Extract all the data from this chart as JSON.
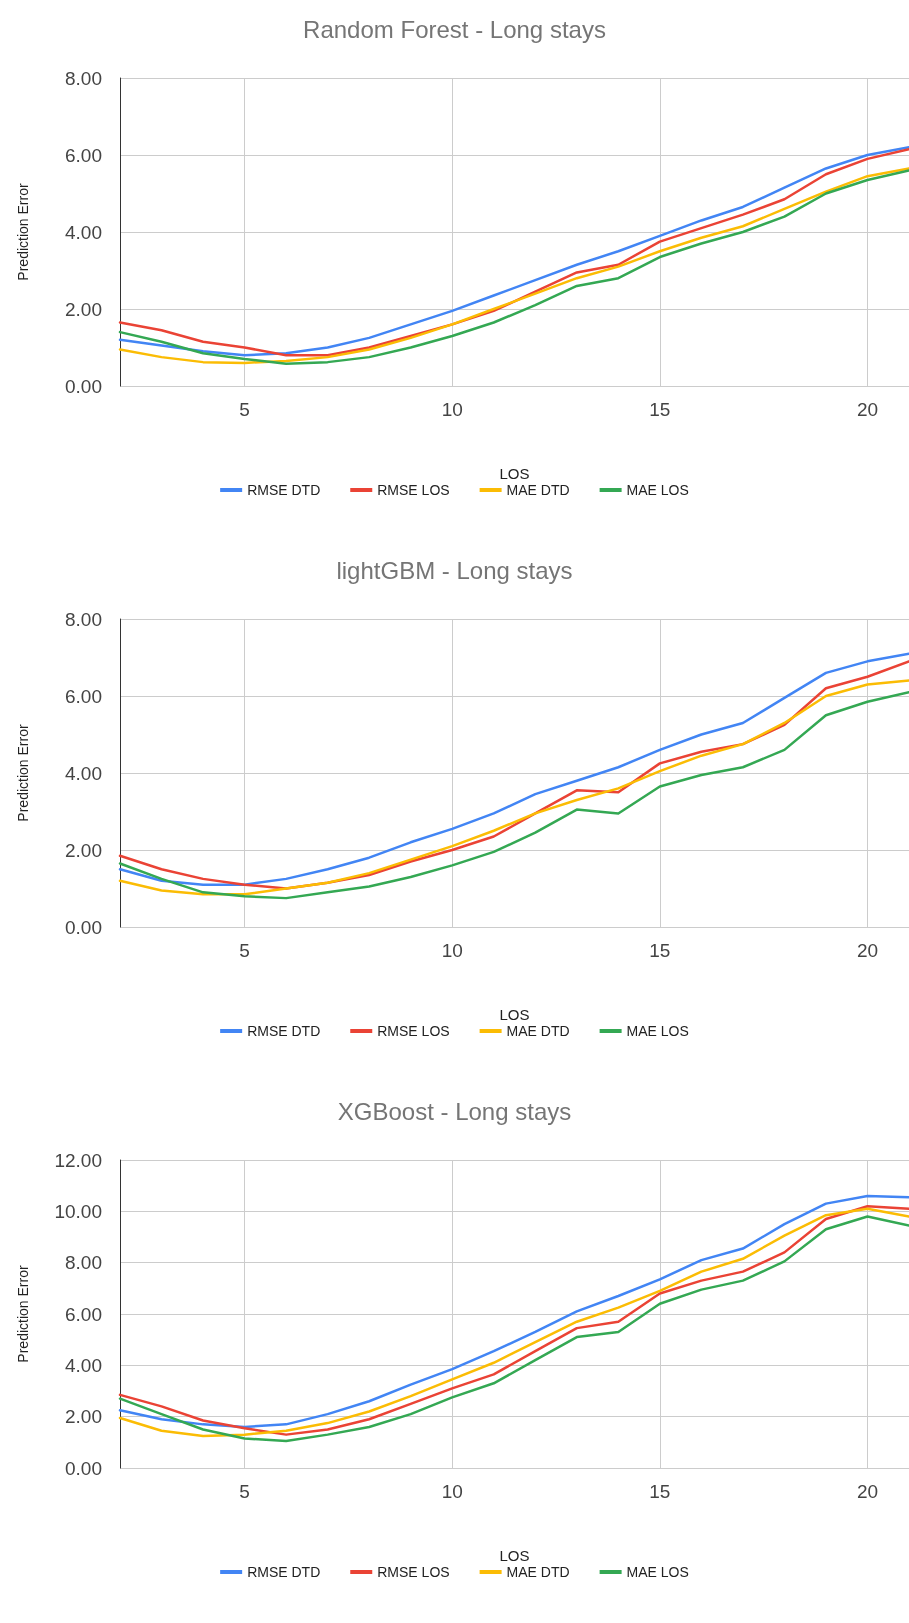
{
  "chart_data": [
    {
      "type": "line",
      "title": "Random Forest - Long stays",
      "xlabel": "LOS",
      "ylabel": "Prediction Error",
      "x": [
        2,
        3,
        4,
        5,
        6,
        7,
        8,
        9,
        10,
        11,
        12,
        13,
        14,
        15,
        16,
        17,
        18,
        19,
        20,
        21
      ],
      "xlim": [
        2,
        21
      ],
      "xticks": [
        5,
        10,
        15,
        20
      ],
      "ylim": [
        0,
        8
      ],
      "yticks": [
        {
          "value": 0,
          "label": "0.00"
        },
        {
          "value": 2,
          "label": "2.00"
        },
        {
          "value": 4,
          "label": "4.00"
        },
        {
          "value": 6,
          "label": "6.00"
        },
        {
          "value": 8,
          "label": "8.00"
        }
      ],
      "grid": true,
      "legend": "bottom",
      "marker": "none",
      "line_style": "solid",
      "series": [
        {
          "name": "RMSE DTD",
          "color": "#4285f4",
          "values": [
            1.2,
            1.05,
            0.9,
            0.8,
            0.85,
            1.0,
            1.25,
            1.6,
            1.95,
            2.35,
            2.75,
            3.15,
            3.5,
            3.9,
            4.3,
            4.65,
            5.15,
            5.65,
            6.0,
            6.2
          ]
        },
        {
          "name": "RMSE LOS",
          "color": "#ea4335",
          "values": [
            1.65,
            1.45,
            1.15,
            1.0,
            0.8,
            0.8,
            1.0,
            1.3,
            1.6,
            1.95,
            2.45,
            2.95,
            3.15,
            3.75,
            4.1,
            4.45,
            4.85,
            5.5,
            5.9,
            6.15
          ]
        },
        {
          "name": "MAE DTD",
          "color": "#fbbc04",
          "values": [
            0.95,
            0.75,
            0.62,
            0.6,
            0.65,
            0.75,
            0.95,
            1.25,
            1.6,
            2.0,
            2.4,
            2.8,
            3.1,
            3.5,
            3.85,
            4.15,
            4.6,
            5.05,
            5.45,
            5.65
          ]
        },
        {
          "name": "MAE LOS",
          "color": "#34a853",
          "values": [
            1.4,
            1.15,
            0.85,
            0.7,
            0.58,
            0.62,
            0.75,
            1.0,
            1.3,
            1.65,
            2.1,
            2.6,
            2.8,
            3.35,
            3.7,
            4.0,
            4.4,
            5.0,
            5.35,
            5.6
          ]
        }
      ]
    },
    {
      "type": "line",
      "title": "lightGBM - Long stays",
      "xlabel": "LOS",
      "ylabel": "Prediction Error",
      "x": [
        2,
        3,
        4,
        5,
        6,
        7,
        8,
        9,
        10,
        11,
        12,
        13,
        14,
        15,
        16,
        17,
        18,
        19,
        20,
        21
      ],
      "xlim": [
        2,
        21
      ],
      "xticks": [
        5,
        10,
        15,
        20
      ],
      "ylim": [
        0,
        8
      ],
      "yticks": [
        {
          "value": 0,
          "label": "0.00"
        },
        {
          "value": 2,
          "label": "2.00"
        },
        {
          "value": 4,
          "label": "4.00"
        },
        {
          "value": 6,
          "label": "6.00"
        },
        {
          "value": 8,
          "label": "8.00"
        }
      ],
      "grid": true,
      "legend": "bottom",
      "marker": "none",
      "line_style": "solid",
      "series": [
        {
          "name": "RMSE DTD",
          "color": "#4285f4",
          "values": [
            1.5,
            1.2,
            1.1,
            1.1,
            1.25,
            1.5,
            1.8,
            2.2,
            2.55,
            2.95,
            3.45,
            3.8,
            4.15,
            4.6,
            5.0,
            5.3,
            5.95,
            6.6,
            6.9,
            7.1
          ]
        },
        {
          "name": "RMSE LOS",
          "color": "#ea4335",
          "values": [
            1.85,
            1.5,
            1.25,
            1.1,
            1.0,
            1.15,
            1.35,
            1.7,
            2.0,
            2.35,
            2.95,
            3.55,
            3.5,
            4.25,
            4.55,
            4.75,
            5.25,
            6.2,
            6.5,
            6.9
          ]
        },
        {
          "name": "MAE DTD",
          "color": "#fbbc04",
          "values": [
            1.2,
            0.95,
            0.85,
            0.85,
            1.0,
            1.15,
            1.4,
            1.75,
            2.1,
            2.5,
            2.95,
            3.3,
            3.6,
            4.05,
            4.45,
            4.75,
            5.3,
            6.0,
            6.3,
            6.4
          ]
        },
        {
          "name": "MAE LOS",
          "color": "#34a853",
          "values": [
            1.65,
            1.25,
            0.9,
            0.8,
            0.75,
            0.9,
            1.05,
            1.3,
            1.6,
            1.95,
            2.45,
            3.05,
            2.95,
            3.65,
            3.95,
            4.15,
            4.6,
            5.5,
            5.85,
            6.1
          ]
        }
      ]
    },
    {
      "type": "line",
      "title": "XGBoost - Long stays",
      "xlabel": "LOS",
      "ylabel": "Prediction Error",
      "x": [
        2,
        3,
        4,
        5,
        6,
        7,
        8,
        9,
        10,
        11,
        12,
        13,
        14,
        15,
        16,
        17,
        18,
        19,
        20,
        21
      ],
      "xlim": [
        2,
        21
      ],
      "xticks": [
        5,
        10,
        15,
        20
      ],
      "ylim": [
        0,
        12
      ],
      "yticks": [
        {
          "value": 0,
          "label": "0.00"
        },
        {
          "value": 2,
          "label": "2.00"
        },
        {
          "value": 4,
          "label": "4.00"
        },
        {
          "value": 6,
          "label": "6.00"
        },
        {
          "value": 8,
          "label": "8.00"
        },
        {
          "value": 10,
          "label": "10.00"
        },
        {
          "value": 12,
          "label": "12.00"
        }
      ],
      "grid": true,
      "legend": "bottom",
      "marker": "none",
      "line_style": "solid",
      "series": [
        {
          "name": "RMSE DTD",
          "color": "#4285f4",
          "values": [
            2.25,
            1.9,
            1.7,
            1.6,
            1.7,
            2.1,
            2.6,
            3.25,
            3.85,
            4.55,
            5.3,
            6.1,
            6.7,
            7.35,
            8.1,
            8.55,
            9.5,
            10.3,
            10.6,
            10.55
          ]
        },
        {
          "name": "RMSE LOS",
          "color": "#ea4335",
          "values": [
            2.85,
            2.4,
            1.85,
            1.55,
            1.3,
            1.5,
            1.9,
            2.5,
            3.1,
            3.65,
            4.55,
            5.45,
            5.7,
            6.8,
            7.3,
            7.65,
            8.4,
            9.7,
            10.2,
            10.1
          ]
        },
        {
          "name": "MAE DTD",
          "color": "#fbbc04",
          "values": [
            1.95,
            1.45,
            1.25,
            1.3,
            1.45,
            1.75,
            2.2,
            2.8,
            3.45,
            4.1,
            4.9,
            5.7,
            6.25,
            6.9,
            7.65,
            8.15,
            9.05,
            9.85,
            10.1,
            9.8
          ]
        },
        {
          "name": "MAE LOS",
          "color": "#34a853",
          "values": [
            2.7,
            2.1,
            1.5,
            1.15,
            1.05,
            1.3,
            1.6,
            2.1,
            2.75,
            3.3,
            4.2,
            5.1,
            5.3,
            6.4,
            6.95,
            7.3,
            8.05,
            9.3,
            9.8,
            9.45
          ]
        }
      ]
    }
  ]
}
